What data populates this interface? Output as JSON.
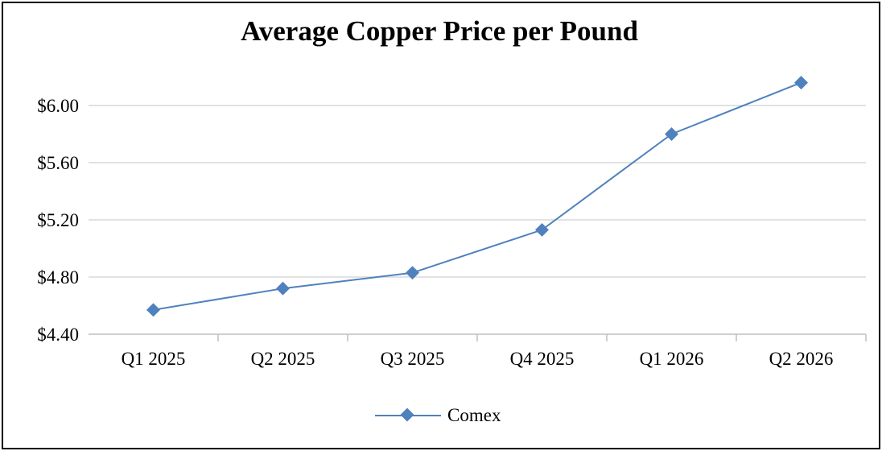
{
  "chart_data": {
    "type": "line",
    "title": "Average Copper Price per Pound",
    "xlabel": "",
    "ylabel": "",
    "categories": [
      "Q1 2025",
      "Q2 2025",
      "Q3 2025",
      "Q4 2025",
      "Q1 2026",
      "Q2 2026"
    ],
    "series": [
      {
        "name": "Comex",
        "values": [
          4.57,
          4.72,
          4.83,
          5.13,
          5.8,
          6.16
        ],
        "color": "#4f81bd",
        "marker": "diamond"
      }
    ],
    "ylim": [
      4.4,
      6.0
    ],
    "yticks": [
      4.4,
      4.8,
      5.2,
      5.6,
      6.0
    ],
    "ytick_labels": [
      "$4.40",
      "$4.80",
      "$5.20",
      "$5.60",
      "$6.00"
    ],
    "grid": "horizontal",
    "legend": "bottom",
    "colors": {
      "line": "#4f81bd",
      "grid": "#d9d9d9",
      "axis": "#bfbfbf",
      "border": "#000000"
    }
  }
}
